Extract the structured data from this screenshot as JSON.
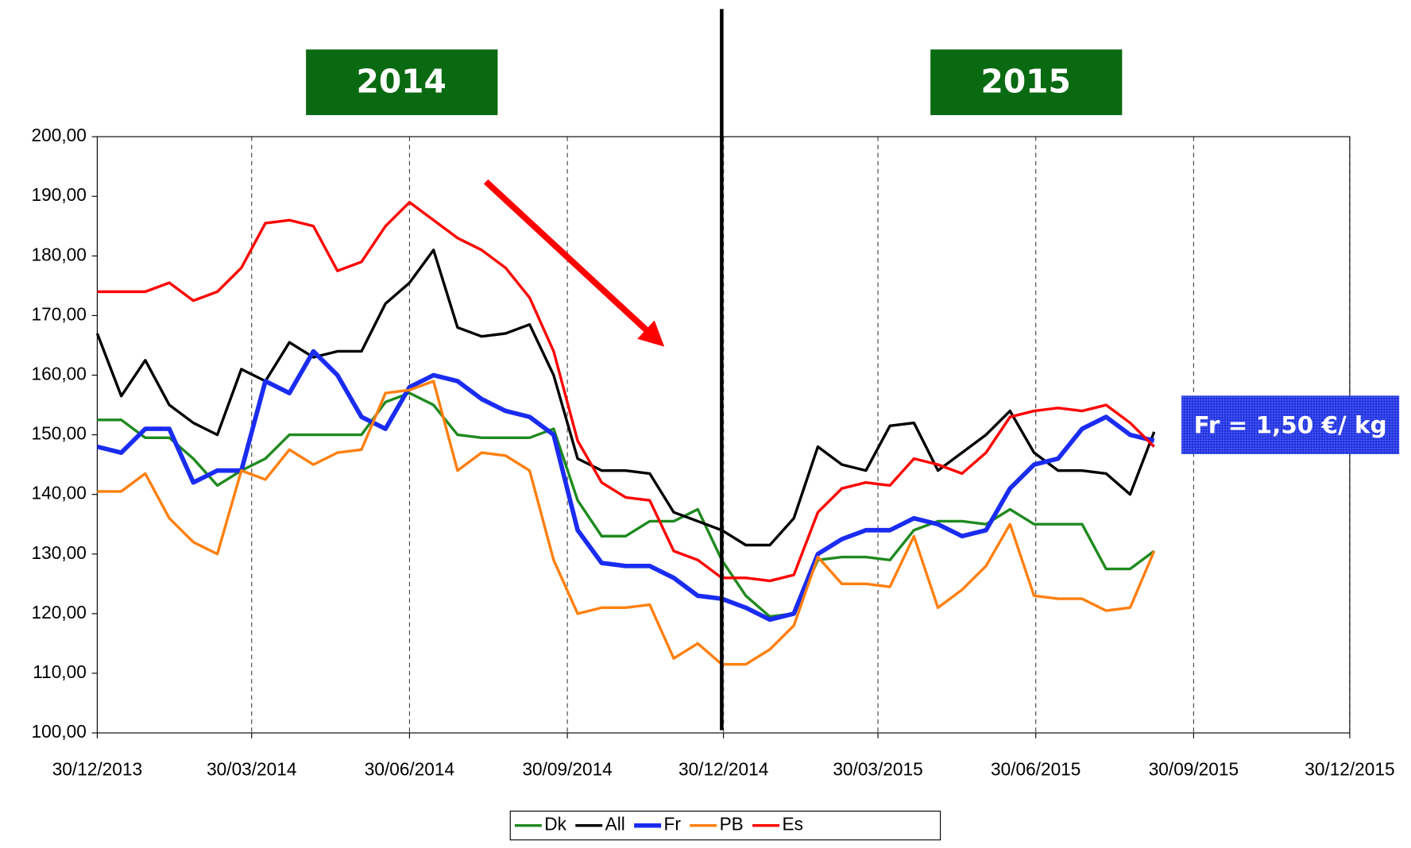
{
  "chart_data": {
    "type": "line",
    "annotations": [
      "2014",
      "2015",
      "Fr = 1,50 €/ kg"
    ],
    "x": [
      "2013-12-30",
      "2014-01-13",
      "2014-01-27",
      "2014-02-10",
      "2014-02-24",
      "2014-03-10",
      "2014-03-24",
      "2014-04-07",
      "2014-04-21",
      "2014-05-05",
      "2014-05-19",
      "2014-06-02",
      "2014-06-16",
      "2014-06-30",
      "2014-07-14",
      "2014-07-28",
      "2014-08-11",
      "2014-08-25",
      "2014-09-08",
      "2014-09-22",
      "2014-10-06",
      "2014-10-20",
      "2014-11-03",
      "2014-11-17",
      "2014-12-01",
      "2014-12-15",
      "2014-12-29",
      "2015-01-12",
      "2015-01-26",
      "2015-02-09",
      "2015-02-23",
      "2015-03-09",
      "2015-03-23",
      "2015-04-06",
      "2015-04-20",
      "2015-05-04",
      "2015-05-18",
      "2015-06-01",
      "2015-06-15",
      "2015-06-29",
      "2015-07-13",
      "2015-07-27",
      "2015-08-10",
      "2015-08-24",
      "2015-09-07"
    ],
    "series": [
      {
        "name": "Dk",
        "color": "#1f8a1f",
        "width": 3,
        "values": [
          152.5,
          152.5,
          149.5,
          149.5,
          146,
          141.5,
          144,
          146,
          150,
          150,
          150,
          150,
          155.5,
          157,
          155,
          150,
          149.5,
          149.5,
          149.5,
          151,
          139,
          133,
          133,
          135.5,
          135.5,
          137.5,
          129,
          123,
          119.5,
          120,
          129,
          129.5,
          129.5,
          129,
          134,
          135.5,
          135.5,
          135,
          137.5,
          135,
          135,
          135,
          127.5,
          127.5,
          130.5
        ]
      },
      {
        "name": "All",
        "color": "#000000",
        "width": 3,
        "values": [
          167,
          156.5,
          162.5,
          155,
          152,
          150,
          161,
          159,
          165.5,
          163,
          164,
          164,
          172,
          175.5,
          181,
          168,
          166.5,
          167,
          168.5,
          160,
          146,
          144,
          144,
          143.5,
          137,
          135.5,
          134,
          131.5,
          131.5,
          136,
          148,
          145,
          144,
          151.5,
          152,
          144,
          147,
          150,
          154,
          147,
          144,
          144,
          143.5,
          140,
          150.5
        ]
      },
      {
        "name": "Fr",
        "color": "#1a2cf0",
        "width": 5,
        "values": [
          148,
          147,
          151,
          151,
          142,
          144,
          144,
          159,
          157,
          164,
          160,
          153,
          151,
          158,
          160,
          159,
          156,
          154,
          153,
          150,
          134,
          128.5,
          128,
          128,
          126,
          123,
          122.5,
          121,
          119,
          120,
          130,
          132.5,
          134,
          134,
          136,
          135,
          133,
          134,
          141,
          145,
          146,
          151,
          153,
          150,
          149
        ]
      },
      {
        "name": "PB",
        "color": "#ff7f0e",
        "width": 3,
        "values": [
          140.5,
          140.5,
          143.5,
          136,
          132,
          130,
          144,
          142.5,
          147.5,
          145,
          147,
          147.5,
          157,
          157.5,
          159,
          144,
          147,
          146.5,
          144,
          129,
          120,
          121,
          121,
          121.5,
          112.5,
          115,
          111.5,
          111.5,
          114,
          118,
          129.5,
          125,
          125,
          124.5,
          133,
          121,
          124,
          128,
          135,
          123,
          122.5,
          122.5,
          120.5,
          121,
          130.5
        ]
      },
      {
        "name": "Es",
        "color": "#ff0000",
        "width": 3,
        "values": [
          174,
          174,
          174,
          175.5,
          172.5,
          174,
          178,
          185.5,
          186,
          185,
          177.5,
          179,
          185,
          189,
          186,
          183,
          181,
          178,
          173,
          164,
          149,
          142,
          139.5,
          139,
          130.5,
          129,
          126,
          126,
          125.5,
          126.5,
          137,
          141,
          142,
          141.5,
          146,
          145,
          143.5,
          147,
          153,
          154,
          154.5,
          154,
          155,
          152,
          148
        ]
      }
    ],
    "xlim": [
      "2013-12-30",
      "2015-12-30"
    ],
    "xticks": [
      {
        "value": "2013-12-30",
        "label": "30/12/2013"
      },
      {
        "value": "2014-03-30",
        "label": "30/03/2014"
      },
      {
        "value": "2014-06-30",
        "label": "30/06/2014"
      },
      {
        "value": "2014-09-30",
        "label": "30/09/2014"
      },
      {
        "value": "2014-12-30",
        "label": "30/12/2014"
      },
      {
        "value": "2015-03-30",
        "label": "30/03/2015"
      },
      {
        "value": "2015-06-30",
        "label": "30/06/2015"
      },
      {
        "value": "2015-09-30",
        "label": "30/09/2015"
      },
      {
        "value": "2015-12-30",
        "label": "30/12/2015"
      }
    ],
    "ylim": [
      100,
      200
    ],
    "yticks": [
      {
        "value": 100,
        "label": "100,00"
      },
      {
        "value": 110,
        "label": "110,00"
      },
      {
        "value": 120,
        "label": "120,00"
      },
      {
        "value": 130,
        "label": "130,00"
      },
      {
        "value": 140,
        "label": "140,00"
      },
      {
        "value": 150,
        "label": "150,00"
      },
      {
        "value": 160,
        "label": "160,00"
      },
      {
        "value": 170,
        "label": "170,00"
      },
      {
        "value": 180,
        "label": "180,00"
      },
      {
        "value": 190,
        "label": "190,00"
      },
      {
        "value": 200,
        "label": "200,00"
      }
    ],
    "grid": "x",
    "legend": "bottom"
  }
}
